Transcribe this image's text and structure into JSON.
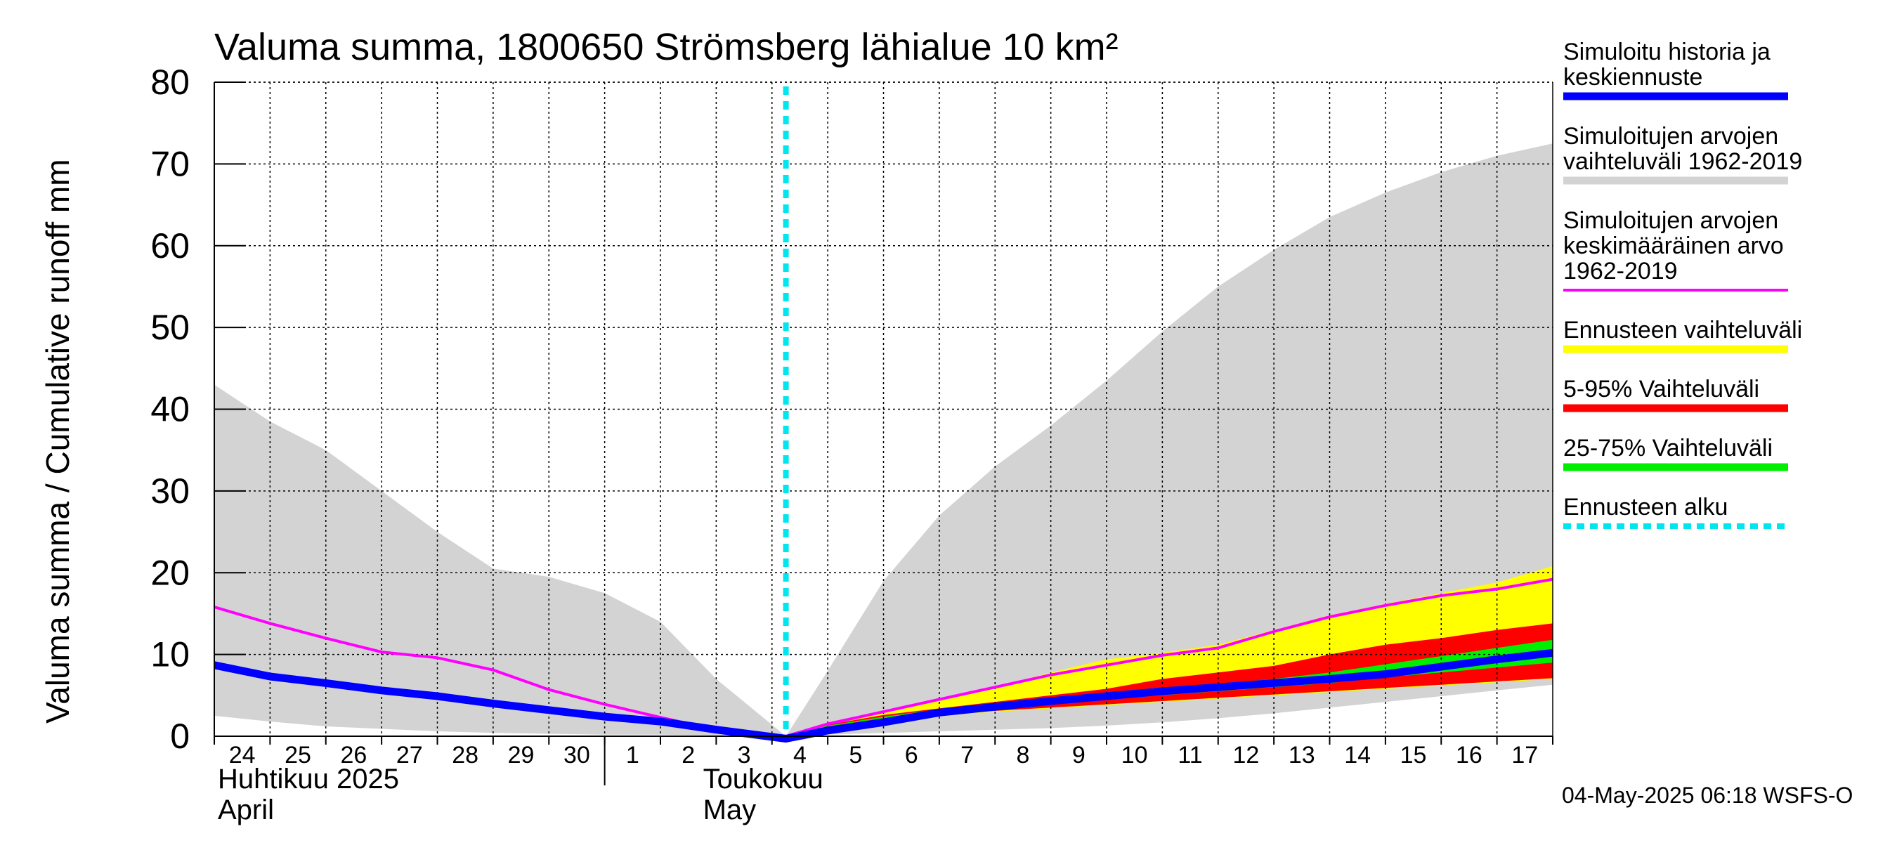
{
  "chart_data": {
    "type": "area",
    "title": "Valuma summa, 1800650 Strömsberg lähialue 10 km²",
    "ylabel": "Valuma summa / Cumulative runoff    mm",
    "ylim": [
      0,
      80
    ],
    "yticks": [
      "0",
      "10",
      "20",
      "30",
      "40",
      "50",
      "60",
      "70",
      "80"
    ],
    "x_start_day": 24,
    "x_end_day": 48,
    "day_tick_labels": [
      "24",
      "25",
      "26",
      "27",
      "28",
      "29",
      "30",
      "1",
      "2",
      "3",
      "4",
      "5",
      "6",
      "7",
      "8",
      "9",
      "10",
      "11",
      "12",
      "13",
      "14",
      "15",
      "16",
      "17"
    ],
    "month_labels": [
      {
        "day": 24,
        "fi": "Huhtikuu  2025",
        "en": "April"
      },
      {
        "day": 32.7,
        "fi": "Toukokuu",
        "en": "May"
      }
    ],
    "month_boundary_day": 31,
    "forecast_start_day": 34.25,
    "x": [
      24,
      25,
      26,
      27,
      28,
      29,
      30,
      31,
      32,
      33,
      34.25,
      35,
      36,
      37,
      38,
      39,
      40,
      41,
      42,
      43,
      44,
      45,
      46,
      47,
      48
    ],
    "series": [
      {
        "name": "hist_range",
        "color": "#d3d3d3",
        "low": [
          2.5,
          1.8,
          1.2,
          0.9,
          0.6,
          0.4,
          0.3,
          0.2,
          0.2,
          0.1,
          0,
          0.2,
          0.4,
          0.6,
          0.8,
          1.0,
          1.3,
          1.7,
          2.2,
          2.8,
          3.5,
          4.2,
          4.9,
          5.6,
          6.3
        ],
        "high": [
          43,
          38.5,
          35,
          30,
          25,
          20.5,
          19.5,
          17.5,
          14,
          7,
          0,
          8,
          19,
          27,
          33,
          38,
          43.5,
          49.5,
          55,
          59.5,
          63.5,
          66.5,
          69,
          71,
          72.5
        ]
      },
      {
        "name": "forecast_range",
        "color": "#ffff00",
        "low": [
          null,
          null,
          null,
          null,
          null,
          null,
          null,
          null,
          null,
          null,
          0,
          1.0,
          2.0,
          2.5,
          3.0,
          3.4,
          3.8,
          4.2,
          4.6,
          5.0,
          5.4,
          5.8,
          6.2,
          6.6,
          7.0
        ],
        "high": [
          null,
          null,
          null,
          null,
          null,
          null,
          null,
          null,
          null,
          null,
          0,
          1.5,
          3.0,
          4.5,
          6.0,
          7.8,
          9.4,
          10.2,
          11.2,
          13.0,
          14.8,
          16.2,
          17.5,
          18.8,
          20.8
        ]
      },
      {
        "name": "range_5_95",
        "color": "#ff0000",
        "low": [
          null,
          null,
          null,
          null,
          null,
          null,
          null,
          null,
          null,
          null,
          0,
          1.0,
          2.0,
          2.6,
          3.1,
          3.5,
          3.9,
          4.3,
          4.7,
          5.1,
          5.5,
          5.9,
          6.3,
          6.7,
          7.1
        ],
        "high": [
          null,
          null,
          null,
          null,
          null,
          null,
          null,
          null,
          null,
          null,
          0,
          1.4,
          2.6,
          3.4,
          4.2,
          5.0,
          5.8,
          7.0,
          7.8,
          8.6,
          10.0,
          11.2,
          12.0,
          13.0,
          13.8
        ]
      },
      {
        "name": "range_25_75",
        "color": "#00ee00",
        "low": [
          null,
          null,
          null,
          null,
          null,
          null,
          null,
          null,
          null,
          null,
          0,
          1.2,
          2.2,
          3.0,
          3.5,
          4.0,
          4.5,
          5.0,
          5.5,
          6.0,
          6.5,
          7.2,
          7.8,
          8.4,
          9.0
        ],
        "high": [
          null,
          null,
          null,
          null,
          null,
          null,
          null,
          null,
          null,
          null,
          0,
          1.3,
          2.4,
          3.3,
          3.9,
          4.6,
          5.2,
          5.8,
          6.4,
          7.0,
          7.8,
          8.8,
          9.8,
          10.8,
          11.8
        ]
      },
      {
        "name": "mean",
        "color": "#ff00ff",
        "values": [
          15.8,
          13.8,
          12,
          10.3,
          9.6,
          8.1,
          5.7,
          3.9,
          2.3,
          0.8,
          0,
          1.5,
          3.0,
          4.5,
          6.0,
          7.5,
          8.7,
          9.9,
          10.8,
          12.8,
          14.6,
          16.0,
          17.2,
          18.0,
          19.2
        ]
      },
      {
        "name": "history_forecast",
        "color": "#0000ff",
        "values": [
          8.7,
          7.3,
          6.5,
          5.6,
          4.9,
          4.0,
          3.2,
          2.4,
          1.8,
          0.8,
          -0.3,
          0.7,
          1.7,
          2.9,
          3.6,
          4.3,
          4.9,
          5.5,
          6.0,
          6.5,
          7.0,
          7.6,
          8.5,
          9.4,
          10.2
        ]
      }
    ]
  },
  "legend": [
    {
      "label": "Simuloitu historia ja\nkeskiennuste",
      "color": "#0000ff",
      "style": "solid"
    },
    {
      "label": "Simuloitujen arvojen\nvaihteluväli 1962-2019",
      "color": "#d3d3d3",
      "style": "solid"
    },
    {
      "label": "Simuloitujen arvojen\nkeskimääräinen arvo\n   1962-2019",
      "color": "#ff00ff",
      "style": "thin"
    },
    {
      "label": "Ennusteen vaihteluväli",
      "color": "#ffff00",
      "style": "solid"
    },
    {
      "label": "5-95% Vaihteluväli",
      "color": "#ff0000",
      "style": "solid"
    },
    {
      "label": "25-75% Vaihteluväli",
      "color": "#00ee00",
      "style": "solid"
    },
    {
      "label": "Ennusteen alku",
      "color": "#00e5ee",
      "style": "dashed"
    }
  ],
  "footer": {
    "timestamp": "04-May-2025 06:18 WSFS-O"
  }
}
